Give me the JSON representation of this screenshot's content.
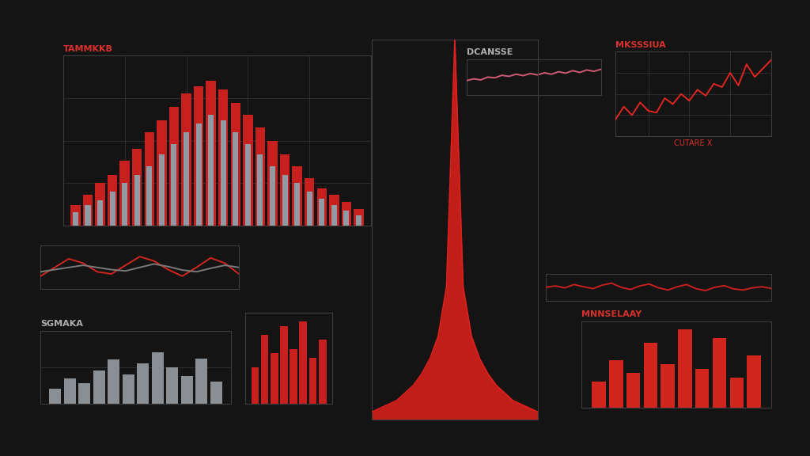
{
  "chart_data": [
    {
      "type": "bar",
      "title": "TAMMKKB",
      "x": [
        1,
        2,
        3,
        4,
        5,
        6,
        7,
        8,
        9,
        10,
        11,
        12,
        13,
        14,
        15,
        16,
        17,
        18,
        19,
        20,
        21,
        22,
        23,
        24
      ],
      "series": [
        {
          "color": "#c8201e",
          "values": [
            12,
            18,
            25,
            30,
            38,
            45,
            55,
            62,
            70,
            78,
            82,
            85,
            80,
            72,
            65,
            58,
            50,
            42,
            35,
            28,
            22,
            18,
            14,
            10
          ]
        },
        {
          "color": "#8e9aa4",
          "values": [
            8,
            12,
            15,
            20,
            25,
            30,
            35,
            42,
            48,
            55,
            60,
            65,
            62,
            55,
            48,
            42,
            35,
            30,
            25,
            20,
            16,
            12,
            9,
            6
          ]
        }
      ],
      "xlim": [
        0,
        25
      ],
      "xticks": [
        0,
        5,
        10,
        15,
        20,
        25
      ],
      "ylim": [
        0,
        100
      ],
      "yticks": [
        0,
        25,
        50,
        75,
        100
      ],
      "grid": true,
      "tick_labels": false
    },
    {
      "type": "line",
      "title": "DCANSSE",
      "x": [
        1,
        2,
        3,
        4,
        5,
        6,
        7,
        8,
        9,
        10,
        11,
        12,
        13,
        14,
        15,
        16,
        17,
        18,
        19,
        20
      ],
      "series": [
        {
          "color": "#d05a78",
          "values": [
            4,
            4.5,
            4.2,
            5,
            4.8,
            5.5,
            5.2,
            5.8,
            5.4,
            6,
            5.6,
            6.2,
            5.8,
            6.5,
            6.1,
            6.8,
            6.3,
            7,
            6.6,
            7.2
          ]
        }
      ],
      "xlim": [
        1,
        20
      ],
      "xticks": [
        1,
        20
      ],
      "ylim": [
        0,
        10
      ],
      "yticks": [
        0,
        5,
        10
      ],
      "grid": false,
      "tick_labels": false
    },
    {
      "type": "line",
      "title": "MKSSSIUA",
      "x_label": "CUTARE X",
      "x": [
        1,
        2,
        3,
        4,
        5,
        6,
        7,
        8,
        9,
        10,
        11,
        12,
        13,
        14,
        15,
        16,
        17,
        18,
        19,
        20
      ],
      "series": [
        {
          "color": "#e0261e",
          "values": [
            20,
            35,
            25,
            40,
            30,
            28,
            45,
            38,
            50,
            42,
            55,
            48,
            62,
            58,
            75,
            60,
            85,
            70,
            80,
            90
          ]
        }
      ],
      "xlim": [
        1,
        20
      ],
      "xticks": [
        1,
        5,
        10,
        15,
        20
      ],
      "ylim": [
        0,
        100
      ],
      "yticks": [
        0,
        25,
        50,
        75,
        100
      ],
      "grid": true,
      "tick_labels": false
    },
    {
      "type": "area",
      "x": [
        -10,
        -9,
        -8,
        -7,
        -6,
        -5,
        -4,
        -3,
        -2,
        -1,
        0,
        1,
        2,
        3,
        4,
        5,
        6,
        7,
        8,
        9,
        10
      ],
      "series": [
        {
          "color": "#e0201c",
          "values": [
            2,
            3,
            4,
            5,
            7,
            9,
            12,
            16,
            22,
            35,
            100,
            35,
            22,
            16,
            12,
            9,
            7,
            5,
            4,
            3,
            2
          ]
        }
      ],
      "xlim": [
        -10,
        10
      ],
      "xticks": [
        -10,
        0,
        10
      ],
      "ylim": [
        0,
        100
      ],
      "yticks": [
        0,
        50,
        100
      ],
      "grid": false,
      "tick_labels": false
    },
    {
      "type": "line",
      "x": [
        1,
        2,
        3,
        4,
        5,
        6,
        7,
        8,
        9,
        10,
        11,
        12,
        13,
        14,
        15
      ],
      "series": [
        {
          "color": "#d0261e",
          "values": [
            30,
            50,
            70,
            60,
            40,
            35,
            55,
            75,
            65,
            45,
            30,
            50,
            72,
            60,
            35
          ]
        },
        {
          "color": "#7a7a7a",
          "values": [
            40,
            45,
            50,
            55,
            50,
            45,
            42,
            50,
            58,
            52,
            44,
            40,
            48,
            55,
            50
          ]
        }
      ],
      "xlim": [
        1,
        15
      ],
      "xticks": [
        1,
        15
      ],
      "ylim": [
        0,
        100
      ],
      "yticks": [
        0,
        50,
        100
      ],
      "grid": false,
      "tick_labels": false
    },
    {
      "type": "bar",
      "title": "SGMAKA",
      "x": [
        1,
        2,
        3,
        4,
        5,
        6,
        7,
        8,
        9,
        10,
        11,
        12
      ],
      "series": [
        {
          "color": "#8a8f94",
          "values": [
            20,
            35,
            28,
            45,
            60,
            40,
            55,
            70,
            50,
            38,
            62,
            30
          ]
        }
      ],
      "xlim": [
        0,
        13
      ],
      "xticks": [
        0,
        13
      ],
      "ylim": [
        0,
        100
      ],
      "yticks": [
        0,
        50,
        100
      ],
      "grid": true,
      "tick_labels": false
    },
    {
      "type": "bar",
      "x": [
        1,
        2,
        3,
        4,
        5,
        6,
        7,
        8
      ],
      "series": [
        {
          "color": "#c8201e",
          "values": [
            40,
            75,
            55,
            85,
            60,
            90,
            50,
            70
          ]
        }
      ],
      "xlim": [
        0,
        9
      ],
      "xticks": [
        0,
        9
      ],
      "ylim": [
        0,
        100
      ],
      "yticks": [
        0,
        50,
        100
      ],
      "grid": false,
      "tick_labels": false
    },
    {
      "type": "line",
      "x": [
        1,
        2,
        3,
        4,
        5,
        6,
        7,
        8,
        9,
        10,
        11,
        12,
        13,
        14,
        15,
        16,
        17,
        18,
        19,
        20,
        21,
        22,
        23,
        24,
        25
      ],
      "series": [
        {
          "color": "#c8201e",
          "values": [
            50,
            55,
            48,
            60,
            52,
            45,
            58,
            65,
            50,
            42,
            55,
            62,
            48,
            40,
            52,
            60,
            45,
            38,
            50,
            56,
            44,
            40,
            48,
            52,
            46
          ]
        }
      ],
      "xlim": [
        1,
        25
      ],
      "xticks": [
        1,
        25
      ],
      "ylim": [
        0,
        100
      ],
      "yticks": [
        0,
        50,
        100
      ],
      "grid": false,
      "tick_labels": false
    },
    {
      "type": "bar",
      "title": "MNNSELAAY",
      "x": [
        1,
        2,
        3,
        4,
        5,
        6,
        7,
        8,
        9,
        10
      ],
      "series": [
        {
          "color": "#d0261e",
          "values": [
            30,
            55,
            40,
            75,
            50,
            90,
            45,
            80,
            35,
            60
          ]
        }
      ],
      "xlim": [
        0,
        11
      ],
      "xticks": [
        0,
        11
      ],
      "ylim": [
        0,
        100
      ],
      "yticks": [
        0,
        50,
        100
      ],
      "grid": false,
      "tick_labels": false
    }
  ]
}
